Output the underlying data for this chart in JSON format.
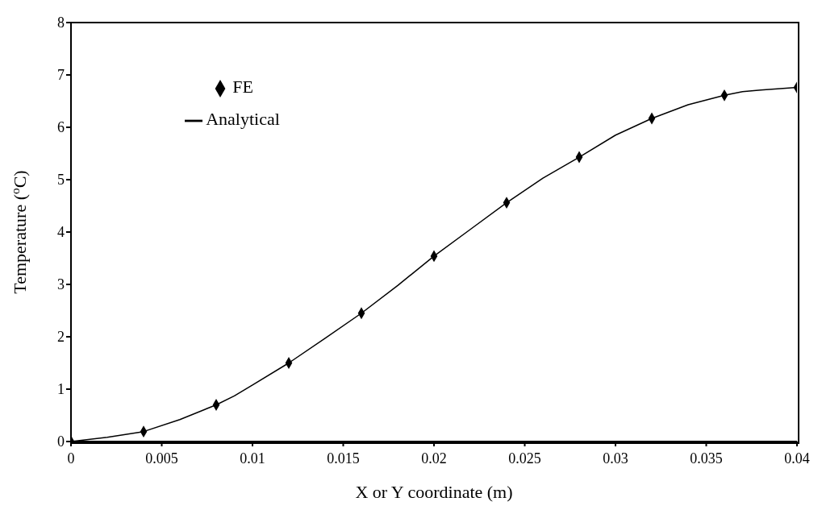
{
  "chart_data": {
    "type": "line",
    "xlabel": "X or Y coordinate (m)",
    "ylabel": "Temperature ($^{o}$C)",
    "xlim": [
      0,
      0.04
    ],
    "xticks": [
      0,
      0.005,
      0.01,
      0.015,
      0.02,
      0.025,
      0.03,
      0.035,
      0.04
    ],
    "ylim": [
      0,
      8
    ],
    "yticks": [
      0,
      1,
      2,
      3,
      4,
      5,
      6,
      7,
      8
    ],
    "grid": false,
    "legend": "top left",
    "series": [
      {
        "name": "FE",
        "type": "scatter",
        "marker": "diamond",
        "color": "#000000",
        "x": [
          0,
          0.004,
          0.008,
          0.012,
          0.016,
          0.02,
          0.024,
          0.028,
          0.032,
          0.036,
          0.04
        ],
        "values": [
          0,
          0.19,
          0.7,
          1.5,
          2.45,
          3.54,
          4.56,
          5.43,
          6.17,
          6.61,
          6.76
        ]
      },
      {
        "name": "Analytical",
        "type": "line",
        "marker": "none",
        "line_style": "solid",
        "color": "#000000",
        "x": [
          0,
          0.002,
          0.004,
          0.006,
          0.008,
          0.009,
          0.01,
          0.012,
          0.014,
          0.016,
          0.018,
          0.02,
          0.022,
          0.024,
          0.026,
          0.028,
          0.03,
          0.032,
          0.034,
          0.036,
          0.037,
          0.038,
          0.04
        ],
        "values": [
          0,
          0.08,
          0.19,
          0.42,
          0.7,
          0.87,
          1.08,
          1.5,
          1.97,
          2.45,
          2.98,
          3.54,
          4.05,
          4.56,
          5.03,
          5.43,
          5.85,
          6.17,
          6.43,
          6.61,
          6.68,
          6.71,
          6.76
        ]
      }
    ]
  }
}
